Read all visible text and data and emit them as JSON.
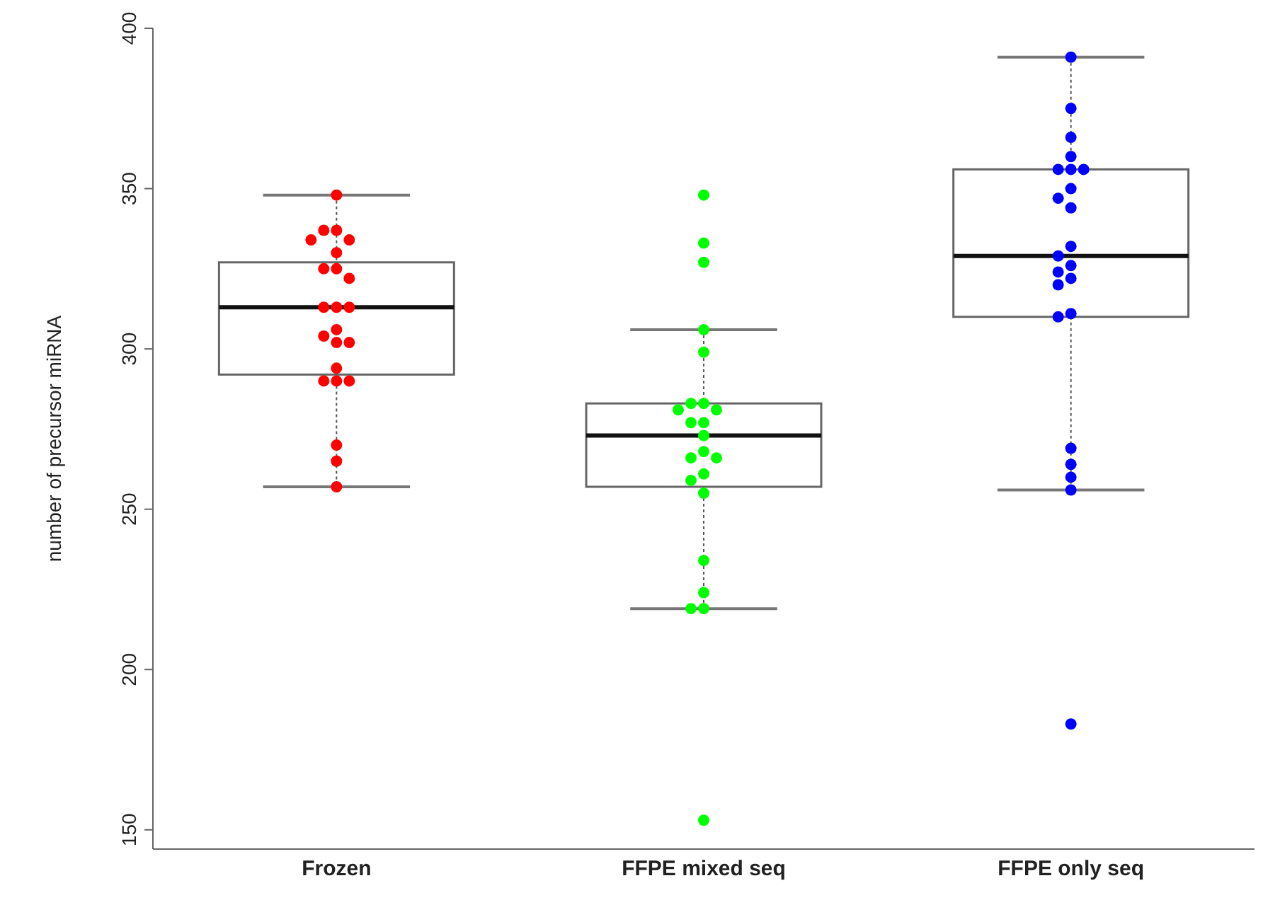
{
  "chart_data": {
    "type": "box",
    "ylabel": "number of precursor miRNA",
    "categories": [
      "Frozen",
      "FFPE mixed seq",
      "FFPE only seq"
    ],
    "ylim": [
      144,
      400
    ],
    "yticks": [
      150,
      200,
      250,
      300,
      350,
      400
    ],
    "legend": false,
    "boxes": [
      {
        "low": 257,
        "q1": 292,
        "median": 313,
        "q3": 327,
        "high": 348
      },
      {
        "low": 219,
        "q1": 257,
        "median": 273,
        "q3": 283,
        "high": 306
      },
      {
        "low": 256,
        "q1": 310,
        "median": 329,
        "q3": 356,
        "high": 391
      }
    ],
    "series": [
      {
        "type": "scatter",
        "color": "#ff0000",
        "x": [
          "Frozen",
          "Frozen",
          "Frozen",
          "Frozen",
          "Frozen",
          "Frozen",
          "Frozen",
          "Frozen",
          "Frozen",
          "Frozen",
          "Frozen",
          "Frozen",
          "Frozen",
          "Frozen",
          "Frozen",
          "Frozen",
          "Frozen",
          "Frozen",
          "Frozen",
          "Frozen",
          "Frozen",
          "Frozen",
          "Frozen"
        ],
        "values": [
          348,
          337,
          337,
          334,
          334,
          330,
          325,
          325,
          322,
          313,
          313,
          313,
          306,
          304,
          302,
          302,
          294,
          290,
          290,
          290,
          270,
          265,
          257
        ]
      },
      {
        "type": "scatter",
        "color": "#00ff00",
        "x": [
          "FFPE mixed seq",
          "FFPE mixed seq",
          "FFPE mixed seq",
          "FFPE mixed seq",
          "FFPE mixed seq",
          "FFPE mixed seq",
          "FFPE mixed seq",
          "FFPE mixed seq",
          "FFPE mixed seq",
          "FFPE mixed seq",
          "FFPE mixed seq",
          "FFPE mixed seq",
          "FFPE mixed seq",
          "FFPE mixed seq",
          "FFPE mixed seq",
          "FFPE mixed seq",
          "FFPE mixed seq",
          "FFPE mixed seq",
          "FFPE mixed seq",
          "FFPE mixed seq",
          "FFPE mixed seq",
          "FFPE mixed seq",
          "FFPE mixed seq"
        ],
        "values": [
          348,
          333,
          327,
          306,
          299,
          283,
          283,
          281,
          281,
          277,
          277,
          273,
          268,
          266,
          266,
          261,
          259,
          255,
          234,
          224,
          219,
          219,
          153
        ]
      },
      {
        "type": "scatter",
        "color": "#0000ff",
        "x": [
          "FFPE only seq",
          "FFPE only seq",
          "FFPE only seq",
          "FFPE only seq",
          "FFPE only seq",
          "FFPE only seq",
          "FFPE only seq",
          "FFPE only seq",
          "FFPE only seq",
          "FFPE only seq",
          "FFPE only seq",
          "FFPE only seq",
          "FFPE only seq",
          "FFPE only seq",
          "FFPE only seq",
          "FFPE only seq",
          "FFPE only seq",
          "FFPE only seq",
          "FFPE only seq",
          "FFPE only seq",
          "FFPE only seq",
          "FFPE only seq",
          "FFPE only seq"
        ],
        "values": [
          391,
          375,
          366,
          360,
          356,
          356,
          356,
          350,
          347,
          344,
          332,
          329,
          326,
          324,
          322,
          320,
          311,
          310,
          269,
          264,
          260,
          256,
          183
        ]
      }
    ]
  }
}
